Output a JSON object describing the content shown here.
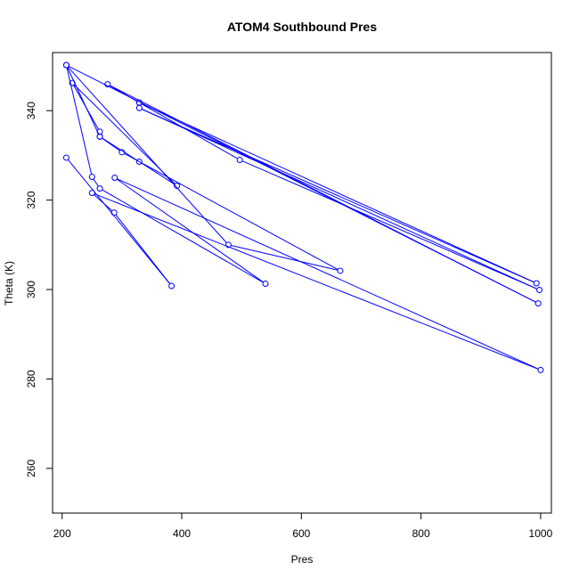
{
  "chart_data": {
    "type": "line",
    "title": "ATOM4 Southbound Pres",
    "xlabel": "Pres",
    "ylabel": "Theta (K)",
    "xlim": [
      184,
      1018
    ],
    "ylim": [
      250,
      353
    ],
    "xticks": [
      200,
      400,
      600,
      800,
      1000
    ],
    "yticks": [
      260,
      280,
      300,
      320,
      340
    ],
    "grid": false,
    "legend": "none",
    "colors": {
      "series": "#0000ff",
      "axes": "#000000",
      "background": "#ffffff"
    },
    "series": [
      {
        "markers": "open-circle",
        "x": [
          207,
          383,
          287,
          250,
          1000,
          288,
          540,
          263,
          250,
          207,
          478,
          665,
          300,
          263,
          263,
          217,
          392,
          329,
          263,
          207,
          996,
          276,
          329,
          497,
          998,
          329,
          993,
          329
        ],
        "y": [
          329.5,
          300.8,
          317.2,
          321.6,
          282.0,
          325.0,
          301.3,
          322.6,
          325.2,
          350.2,
          310.0,
          304.2,
          330.7,
          334.2,
          335.3,
          346.2,
          323.2,
          328.6,
          334.2,
          350.2,
          296.9,
          345.9,
          341.8,
          329.0,
          299.9,
          340.6,
          301.4,
          341.8
        ]
      }
    ]
  }
}
